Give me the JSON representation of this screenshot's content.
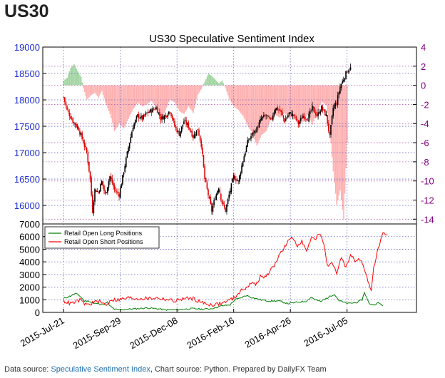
{
  "heading": "US30",
  "footer": {
    "prefix": "Data source: ",
    "link": "Speculative Sentiment Index",
    "suffix": ", Chart source: Python. Prepared by DailyFX Team"
  },
  "colors": {
    "price_axis": "#1f2fcf",
    "ssi_axis": "#800080",
    "up_candle": "#000000",
    "down_candle": "#e00000",
    "bar_positive": "#9fd49f",
    "bar_negative": "#ffb0b0",
    "long_line": "#008000",
    "short_line": "#ff0000",
    "grid": "#6060c0"
  },
  "chart_data": [
    {
      "type": "candlestick+bar",
      "title": "US30 Speculative Sentiment Index",
      "y_left": {
        "ticks": [
          16000,
          16500,
          17000,
          17500,
          18000,
          18500,
          19000
        ],
        "range": [
          15650,
          19000
        ]
      },
      "y_right": {
        "ticks": [
          -14,
          -12,
          -10,
          -8,
          -6,
          -4,
          -2,
          0,
          2,
          4
        ],
        "range": [
          -14.5,
          4
        ]
      },
      "x_ticks": [
        "2015-Jul-21",
        "2015-Sep-29",
        "2015-Dec-08",
        "2016-Feb-16",
        "2016-Apr-26",
        "2016-Jul-05"
      ],
      "price_series": [
        [
          0,
          18050
        ],
        [
          3,
          17800
        ],
        [
          8,
          17600
        ],
        [
          13,
          17450
        ],
        [
          17,
          17200
        ],
        [
          20,
          17000
        ],
        [
          23,
          16500
        ],
        [
          25,
          15900
        ],
        [
          27,
          16300
        ],
        [
          30,
          16250
        ],
        [
          33,
          16450
        ],
        [
          36,
          16200
        ],
        [
          40,
          16550
        ],
        [
          44,
          16300
        ],
        [
          48,
          16200
        ],
        [
          52,
          16650
        ],
        [
          56,
          17100
        ],
        [
          60,
          17500
        ],
        [
          64,
          17700
        ],
        [
          68,
          17650
        ],
        [
          72,
          17750
        ],
        [
          76,
          17800
        ],
        [
          80,
          17850
        ],
        [
          84,
          17650
        ],
        [
          88,
          17700
        ],
        [
          92,
          17800
        ],
        [
          96,
          17500
        ],
        [
          100,
          17350
        ],
        [
          104,
          17600
        ],
        [
          108,
          17500
        ],
        [
          112,
          17300
        ],
        [
          116,
          17450
        ],
        [
          119,
          17150
        ],
        [
          122,
          16500
        ],
        [
          125,
          16200
        ],
        [
          128,
          15900
        ],
        [
          131,
          16150
        ],
        [
          134,
          16350
        ],
        [
          137,
          16050
        ],
        [
          140,
          15900
        ],
        [
          143,
          16200
        ],
        [
          147,
          16550
        ],
        [
          151,
          16450
        ],
        [
          155,
          16850
        ],
        [
          159,
          17200
        ],
        [
          163,
          17350
        ],
        [
          167,
          17450
        ],
        [
          171,
          17650
        ],
        [
          175,
          17700
        ],
        [
          179,
          17600
        ],
        [
          183,
          17850
        ],
        [
          187,
          17800
        ],
        [
          191,
          17600
        ],
        [
          195,
          17750
        ],
        [
          199,
          17700
        ],
        [
          203,
          17550
        ],
        [
          207,
          17700
        ],
        [
          211,
          17650
        ],
        [
          215,
          17850
        ],
        [
          219,
          17700
        ],
        [
          223,
          17850
        ],
        [
          227,
          17700
        ],
        [
          230,
          17300
        ],
        [
          233,
          17850
        ],
        [
          236,
          17950
        ],
        [
          239,
          18250
        ],
        [
          242,
          18400
        ],
        [
          245,
          18550
        ],
        [
          248,
          18600
        ]
      ],
      "ssi_series": [
        [
          0,
          0.5
        ],
        [
          3,
          0.8
        ],
        [
          6,
          1.8
        ],
        [
          9,
          2.2
        ],
        [
          12,
          1.5
        ],
        [
          15,
          0.9
        ],
        [
          17,
          -0.3
        ],
        [
          20,
          -1.5
        ],
        [
          24,
          -1.0
        ],
        [
          27,
          -0.8
        ],
        [
          30,
          -1.3
        ],
        [
          33,
          -0.6
        ],
        [
          36,
          -1.8
        ],
        [
          40,
          -3.0
        ],
        [
          44,
          -4.8
        ],
        [
          48,
          -4.0
        ],
        [
          52,
          -4.5
        ],
        [
          56,
          -3.5
        ],
        [
          60,
          -2.5
        ],
        [
          64,
          -1.8
        ],
        [
          68,
          -2.2
        ],
        [
          72,
          -2.0
        ],
        [
          76,
          -1.6
        ],
        [
          80,
          -2.4
        ],
        [
          84,
          -3.8
        ],
        [
          88,
          -2.6
        ],
        [
          92,
          -1.5
        ],
        [
          96,
          -1.8
        ],
        [
          100,
          -2.7
        ],
        [
          104,
          -3.0
        ],
        [
          108,
          -2.2
        ],
        [
          112,
          -2.9
        ],
        [
          116,
          -1.0
        ],
        [
          119,
          -0.4
        ],
        [
          122,
          0.4
        ],
        [
          125,
          1.2
        ],
        [
          128,
          1.0
        ],
        [
          131,
          0.6
        ],
        [
          134,
          0.2
        ],
        [
          137,
          0.5
        ],
        [
          140,
          -0.3
        ],
        [
          143,
          -1.4
        ],
        [
          147,
          -2.2
        ],
        [
          151,
          -2.6
        ],
        [
          155,
          -3.2
        ],
        [
          159,
          -4.2
        ],
        [
          163,
          -5.0
        ],
        [
          167,
          -6.3
        ],
        [
          171,
          -5.2
        ],
        [
          175,
          -4.8
        ],
        [
          179,
          -3.6
        ],
        [
          183,
          -3.1
        ],
        [
          187,
          -3.4
        ],
        [
          191,
          -2.9
        ],
        [
          195,
          -3.5
        ],
        [
          199,
          -3.2
        ],
        [
          203,
          -4.0
        ],
        [
          207,
          -3.8
        ],
        [
          211,
          -3.1
        ],
        [
          215,
          -4.1
        ],
        [
          219,
          -2.8
        ],
        [
          223,
          -1.7
        ],
        [
          227,
          -2.1
        ],
        [
          230,
          -4.6
        ],
        [
          233,
          -9.0
        ],
        [
          236,
          -12.5
        ],
        [
          239,
          -11.0
        ],
        [
          242,
          -14.0
        ],
        [
          245,
          -6.0
        ]
      ],
      "x_range": [
        -18,
        305
      ],
      "x_tick_positions": [
        0,
        49,
        98,
        147,
        196,
        245
      ]
    },
    {
      "type": "line",
      "y_ticks": [
        0,
        1000,
        2000,
        3000,
        4000,
        5000,
        6000,
        7000
      ],
      "ylim": [
        0,
        7000
      ],
      "legend_position": "top-left",
      "series": [
        {
          "name": "Retail Open Long Positions",
          "values": [
            [
              0,
              1100
            ],
            [
              6,
              1300
            ],
            [
              10,
              1500
            ],
            [
              14,
              1300
            ],
            [
              18,
              900
            ],
            [
              22,
              900
            ],
            [
              26,
              700
            ],
            [
              30,
              700
            ],
            [
              34,
              600
            ],
            [
              38,
              800
            ],
            [
              40,
              500
            ],
            [
              44,
              250
            ],
            [
              48,
              200
            ],
            [
              56,
              250
            ],
            [
              64,
              300
            ],
            [
              72,
              350
            ],
            [
              80,
              300
            ],
            [
              88,
              200
            ],
            [
              96,
              200
            ],
            [
              104,
              250
            ],
            [
              112,
              300
            ],
            [
              120,
              250
            ],
            [
              128,
              300
            ],
            [
              136,
              500
            ],
            [
              144,
              600
            ],
            [
              148,
              1000
            ],
            [
              152,
              1100
            ],
            [
              158,
              1350
            ],
            [
              162,
              1200
            ],
            [
              170,
              1000
            ],
            [
              178,
              900
            ],
            [
              186,
              900
            ],
            [
              194,
              700
            ],
            [
              202,
              800
            ],
            [
              210,
              900
            ],
            [
              214,
              1200
            ],
            [
              218,
              1000
            ],
            [
              222,
              850
            ],
            [
              226,
              1050
            ],
            [
              230,
              1250
            ],
            [
              234,
              1450
            ],
            [
              238,
              950
            ],
            [
              242,
              800
            ],
            [
              246,
              700
            ],
            [
              250,
              750
            ],
            [
              254,
              800
            ],
            [
              258,
              1000
            ],
            [
              260,
              1600
            ],
            [
              264,
              700
            ],
            [
              268,
              600
            ],
            [
              272,
              750
            ],
            [
              276,
              550
            ]
          ]
        },
        {
          "name": "Retail Open Short Positions",
          "values": [
            [
              0,
              900
            ],
            [
              6,
              700
            ],
            [
              10,
              800
            ],
            [
              14,
              1000
            ],
            [
              18,
              700
            ],
            [
              22,
              600
            ],
            [
              26,
              800
            ],
            [
              30,
              900
            ],
            [
              34,
              700
            ],
            [
              38,
              600
            ],
            [
              40,
              1000
            ],
            [
              44,
              1000
            ],
            [
              48,
              1000
            ],
            [
              56,
              1150
            ],
            [
              64,
              1100
            ],
            [
              72,
              1100
            ],
            [
              80,
              1150
            ],
            [
              88,
              1050
            ],
            [
              96,
              900
            ],
            [
              104,
              1100
            ],
            [
              112,
              1100
            ],
            [
              120,
              750
            ],
            [
              128,
              600
            ],
            [
              136,
              700
            ],
            [
              144,
              1000
            ],
            [
              148,
              1200
            ],
            [
              152,
              1600
            ],
            [
              158,
              2000
            ],
            [
              162,
              2300
            ],
            [
              166,
              2200
            ],
            [
              170,
              2800
            ],
            [
              174,
              2800
            ],
            [
              178,
              3200
            ],
            [
              182,
              3700
            ],
            [
              186,
              4500
            ],
            [
              190,
              5000
            ],
            [
              194,
              5600
            ],
            [
              198,
              5900
            ],
            [
              202,
              5300
            ],
            [
              206,
              5700
            ],
            [
              210,
              4800
            ],
            [
              214,
              5800
            ],
            [
              218,
              5900
            ],
            [
              222,
              6200
            ],
            [
              224,
              5700
            ],
            [
              226,
              5000
            ],
            [
              228,
              3600
            ],
            [
              232,
              3800
            ],
            [
              236,
              3100
            ],
            [
              240,
              4300
            ],
            [
              244,
              3600
            ],
            [
              248,
              4500
            ],
            [
              252,
              4100
            ],
            [
              256,
              4200
            ],
            [
              260,
              3400
            ],
            [
              264,
              2300
            ],
            [
              266,
              1700
            ],
            [
              268,
              3500
            ],
            [
              272,
              5100
            ],
            [
              276,
              6200
            ],
            [
              280,
              6000
            ]
          ]
        }
      ]
    }
  ]
}
